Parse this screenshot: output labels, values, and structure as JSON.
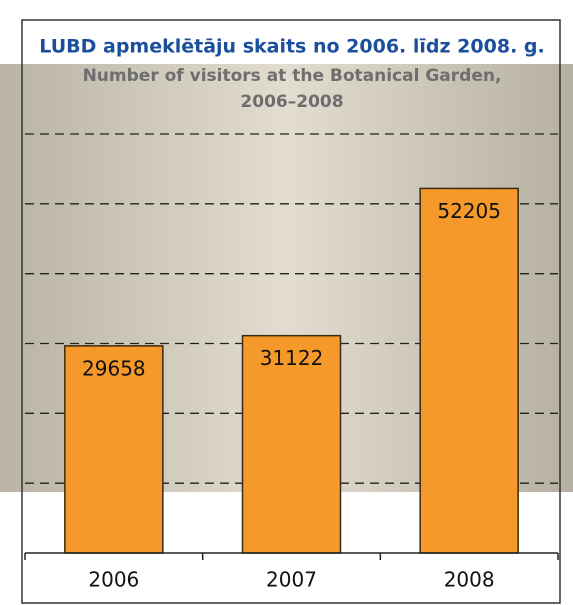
{
  "chart_data": {
    "type": "bar",
    "title": "LUBD apmeklētāju skaits no 2006. līdz 2008. g.",
    "subtitle": [
      "Number of visitors at the Botanical Garden,",
      "2006–2008"
    ],
    "categories": [
      "2006",
      "2007",
      "2008"
    ],
    "values": [
      29658,
      31122,
      52205
    ],
    "color": "#f5992b",
    "ylim": [
      0,
      60000
    ],
    "yticks": [
      10000,
      20000,
      30000,
      40000,
      50000,
      60000
    ],
    "grid": true
  }
}
